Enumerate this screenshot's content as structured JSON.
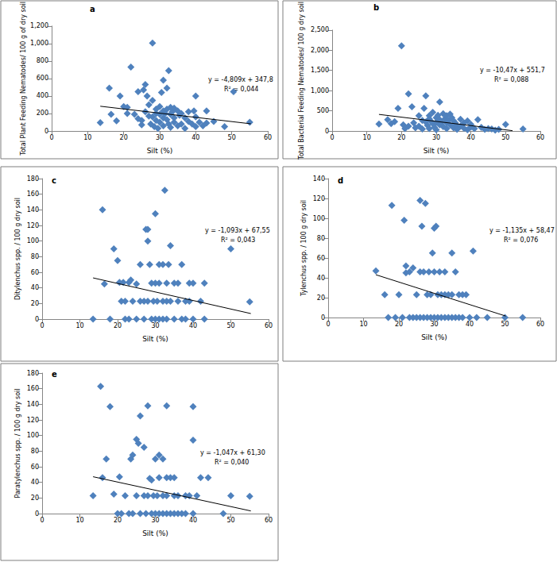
{
  "chart_data": [
    {
      "type": "scatter",
      "title": "a",
      "x_label": "Silt (%)",
      "y_label": "Total Plant Feeding Nematodes/ 100 g of dry soil",
      "annotations": [
        "y = -4,809x + 347,8",
        "R² = 0,044"
      ],
      "xlim": [
        0,
        60
      ],
      "xticks": [
        0,
        10,
        20,
        30,
        40,
        50,
        60
      ],
      "ylim": [
        0,
        1200
      ],
      "yticks": [
        0,
        200,
        400,
        600,
        800,
        1000,
        1200
      ],
      "grid": false,
      "series": [
        {
          "type": "scatter",
          "color": "#4f81bd",
          "marker": "diamond",
          "x": [
            13.5,
            16,
            16.5,
            18,
            19,
            20,
            21,
            21,
            22,
            23,
            24,
            24,
            25,
            25,
            25.5,
            26,
            26,
            26.5,
            27,
            27,
            27.5,
            28,
            28,
            28,
            28.5,
            29,
            29,
            29,
            29.5,
            30,
            30,
            30,
            30.5,
            31,
            31,
            31,
            31,
            31.5,
            32,
            32,
            32,
            32.5,
            32.5,
            33,
            33,
            33,
            33.5,
            34,
            34,
            34,
            35,
            35,
            35.5,
            36,
            36,
            37,
            37,
            38,
            38,
            39,
            39.5,
            40,
            40,
            40,
            41,
            42,
            43,
            43,
            45,
            48,
            50.5,
            55
          ],
          "values": [
            95,
            490,
            190,
            115,
            400,
            280,
            270,
            200,
            730,
            190,
            140,
            450,
            70,
            120,
            470,
            530,
            220,
            400,
            170,
            300,
            80,
            1005,
            350,
            160,
            50,
            250,
            200,
            120,
            30,
            190,
            280,
            100,
            440,
            580,
            230,
            150,
            60,
            200,
            490,
            250,
            130,
            690,
            80,
            270,
            190,
            40,
            220,
            260,
            150,
            100,
            230,
            60,
            180,
            200,
            80,
            150,
            30,
            220,
            110,
            80,
            230,
            400,
            160,
            50,
            100,
            60,
            230,
            90,
            110,
            50,
            450,
            100
          ]
        },
        {
          "type": "line",
          "color": "#000000",
          "line_style": "solid",
          "x": [
            13.5,
            55.3
          ],
          "values": [
            282.9,
            81.9
          ]
        }
      ]
    },
    {
      "type": "scatter",
      "title": "b",
      "x_label": "Silt (%)",
      "y_label": "Total Bacterial Feeding Nematodes/ 100 g dry soil",
      "annotations": [
        "y = -10,47x + 551,7",
        "R² = 0,088"
      ],
      "xlim": [
        0,
        60
      ],
      "xticks": [
        0,
        10,
        20,
        30,
        40,
        50,
        60
      ],
      "ylim": [
        0,
        2500
      ],
      "yticks": [
        0,
        500,
        1000,
        1500,
        2000,
        2500
      ],
      "grid": false,
      "series": [
        {
          "type": "scatter",
          "color": "#4f81bd",
          "marker": "diamond",
          "x": [
            13.5,
            16,
            17,
            18,
            19,
            20,
            20.5,
            21,
            22,
            22,
            23,
            23.5,
            24,
            25,
            25,
            26,
            26,
            26.5,
            27,
            27,
            27.5,
            28,
            28,
            28,
            28.5,
            29,
            29,
            29.5,
            30,
            30,
            30,
            30.5,
            31,
            31,
            31,
            31.5,
            32,
            32,
            32.5,
            33,
            33,
            33,
            33.5,
            34,
            34,
            34.5,
            35,
            35,
            35.5,
            36,
            36,
            37,
            37,
            38,
            38,
            39,
            39,
            40,
            40,
            41,
            42,
            43,
            44,
            45,
            46,
            47,
            48,
            50,
            55
          ],
          "values": [
            170,
            280,
            180,
            230,
            560,
            2110,
            150,
            60,
            920,
            120,
            600,
            200,
            80,
            380,
            120,
            260,
            50,
            560,
            220,
            870,
            140,
            380,
            300,
            60,
            240,
            180,
            460,
            90,
            330,
            210,
            30,
            390,
            280,
            150,
            720,
            220,
            430,
            110,
            300,
            380,
            200,
            60,
            260,
            420,
            150,
            330,
            250,
            80,
            200,
            140,
            40,
            290,
            120,
            70,
            200,
            250,
            30,
            100,
            160,
            60,
            280,
            90,
            40,
            60,
            50,
            20,
            40,
            160,
            50
          ]
        },
        {
          "type": "line",
          "color": "#000000",
          "line_style": "solid",
          "x": [
            13.5,
            52
          ],
          "values": [
            410.3,
            7.3
          ]
        }
      ]
    },
    {
      "type": "scatter",
      "title": "c",
      "x_label": "Silt (%)",
      "y_label": "Ditylenchus spp. / 100 g dry soil",
      "annotations": [
        "y = -1,093x + 67,55",
        "R² = 0,043"
      ],
      "xlim": [
        0,
        60
      ],
      "xticks": [
        0,
        10,
        20,
        30,
        40,
        50,
        60
      ],
      "ylim": [
        0,
        180
      ],
      "yticks": [
        0,
        20,
        40,
        60,
        80,
        100,
        120,
        140,
        160,
        180
      ],
      "grid": false,
      "series": [
        {
          "type": "scatter",
          "color": "#4f81bd",
          "marker": "diamond",
          "x": [
            13.5,
            16,
            16.5,
            18,
            19,
            20,
            20.5,
            21,
            21.5,
            22,
            22,
            23,
            23,
            23.5,
            24,
            25,
            25,
            26,
            26,
            27,
            27,
            27.5,
            28,
            28,
            28.5,
            28,
            29,
            29,
            29.5,
            30,
            30,
            30,
            30.5,
            31,
            31,
            31,
            32,
            32,
            32,
            32.5,
            33,
            33,
            33,
            33.5,
            34,
            34,
            35,
            35,
            36,
            36,
            37,
            37,
            38,
            38,
            39,
            39,
            40,
            40,
            42,
            43,
            43,
            50,
            55
          ],
          "values": [
            0,
            140,
            45,
            0,
            90,
            75,
            47,
            23,
            47,
            23,
            0,
            47,
            0,
            50,
            23,
            45,
            0,
            23,
            70,
            23,
            0,
            115,
            115,
            100,
            70,
            23,
            0,
            46,
            23,
            135,
            46,
            0,
            23,
            70,
            46,
            0,
            70,
            23,
            0,
            165,
            46,
            23,
            0,
            70,
            94,
            23,
            46,
            0,
            23,
            46,
            0,
            70,
            23,
            0,
            46,
            23,
            46,
            0,
            23,
            46,
            0,
            90,
            22
          ]
        },
        {
          "type": "line",
          "color": "#000000",
          "line_style": "solid",
          "x": [
            13.5,
            55.3
          ],
          "values": [
            52.8,
            7.1
          ]
        }
      ]
    },
    {
      "type": "scatter",
      "title": "d",
      "x_label": "Silt (%)",
      "y_label": "Tylenchus spp. / 100 g dry soil",
      "annotations": [
        "y = -1,135x + 58,47",
        "R² = 0,076"
      ],
      "xlim": [
        0,
        60
      ],
      "xticks": [
        0,
        10,
        20,
        30,
        40,
        50,
        60
      ],
      "ylim": [
        0,
        140
      ],
      "yticks": [
        0,
        20,
        40,
        60,
        80,
        100,
        120,
        140
      ],
      "grid": false,
      "series": [
        {
          "type": "scatter",
          "color": "#4f81bd",
          "marker": "diamond",
          "x": [
            13.5,
            16,
            17,
            18,
            19,
            20,
            21,
            21.5,
            22,
            22,
            23,
            23,
            24,
            24,
            25,
            25,
            26,
            26,
            26,
            26.5,
            27,
            27,
            27.5,
            28,
            28,
            28.5,
            29,
            29,
            29.5,
            30,
            30,
            30,
            30.5,
            31,
            31,
            31.5,
            32,
            32,
            33,
            33,
            33,
            34,
            34,
            35,
            35,
            35,
            36,
            36,
            37,
            37,
            38,
            38,
            39,
            40,
            41,
            42,
            45,
            50,
            55
          ],
          "values": [
            47,
            23,
            0,
            113,
            0,
            23,
            0,
            98,
            45,
            52,
            0,
            46,
            50,
            0,
            23,
            0,
            118,
            46,
            0,
            92,
            46,
            0,
            115,
            23,
            0,
            46,
            0,
            23,
            65,
            90,
            46,
            0,
            92,
            23,
            0,
            46,
            23,
            0,
            46,
            0,
            23,
            23,
            0,
            65,
            23,
            0,
            46,
            0,
            23,
            0,
            23,
            0,
            23,
            0,
            67,
            0,
            0,
            0,
            0
          ]
        },
        {
          "type": "line",
          "color": "#000000",
          "line_style": "solid",
          "x": [
            13.5,
            50.2
          ],
          "values": [
            43.1,
            1.5
          ]
        }
      ]
    },
    {
      "type": "scatter",
      "title": "e",
      "x_label": "Silt (%)",
      "y_label": "Paratylenchus spp. / 100 g dry soil",
      "annotations": [
        "y = -1,047x + 61,30",
        "R² = 0,040"
      ],
      "xlim": [
        0,
        60
      ],
      "xticks": [
        0,
        10,
        20,
        30,
        40,
        50,
        60
      ],
      "ylim": [
        0,
        180
      ],
      "yticks": [
        0,
        20,
        40,
        60,
        80,
        100,
        120,
        140,
        160,
        180
      ],
      "grid": false,
      "series": [
        {
          "type": "scatter",
          "color": "#4f81bd",
          "marker": "diamond",
          "x": [
            13.5,
            15.5,
            16,
            17,
            18,
            19,
            20,
            20.5,
            21,
            22,
            23,
            23.5,
            24,
            24,
            25,
            25,
            25.5,
            26,
            26,
            27,
            27,
            27.5,
            28,
            28,
            28.5,
            29,
            29,
            29.5,
            30,
            30,
            30.5,
            31,
            31,
            31,
            32,
            32,
            32,
            33,
            33,
            33,
            33,
            34,
            34,
            35,
            35,
            35,
            36,
            36,
            37,
            38,
            38,
            39,
            40,
            40,
            40,
            41,
            42,
            44,
            48,
            50,
            55
          ],
          "values": [
            23,
            163,
            46,
            70,
            137,
            25,
            0,
            47,
            0,
            23,
            0,
            70,
            75,
            0,
            23,
            95,
            90,
            125,
            0,
            23,
            85,
            0,
            138,
            23,
            45,
            0,
            43,
            23,
            70,
            0,
            23,
            75,
            46,
            0,
            23,
            70,
            0,
            138,
            46,
            23,
            0,
            46,
            0,
            23,
            46,
            0,
            23,
            0,
            0,
            23,
            0,
            23,
            94,
            137,
            0,
            23,
            46,
            46,
            0,
            23,
            22
          ]
        },
        {
          "type": "line",
          "color": "#000000",
          "line_style": "solid",
          "x": [
            13.5,
            55.3
          ],
          "values": [
            47.2,
            3.4
          ]
        }
      ]
    }
  ]
}
